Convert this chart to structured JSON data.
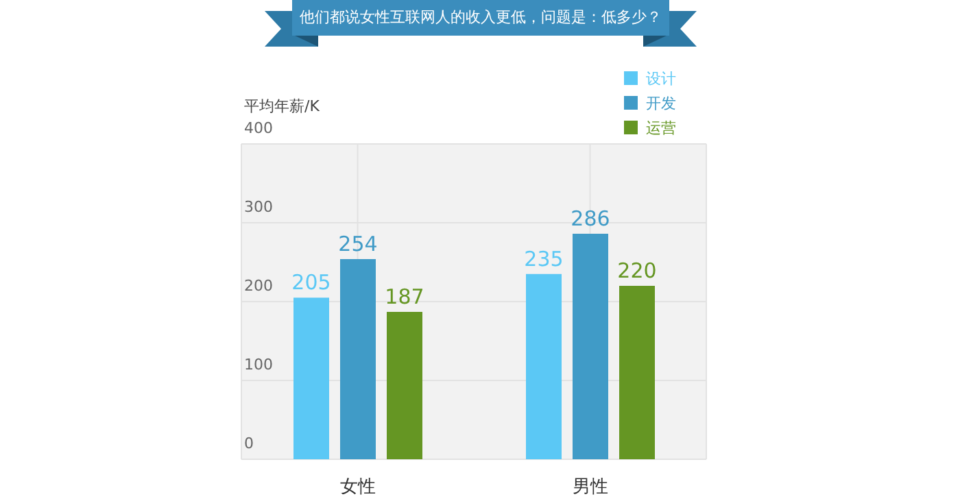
{
  "chart_data": {
    "type": "bar",
    "title": "他们都说女性互联网人的收入更低，问题是：低多少？",
    "ylabel": "平均年薪/K",
    "categories": [
      "女性",
      "男性"
    ],
    "series": [
      {
        "name": "设计",
        "color": "#5bc8f5",
        "values": [
          205,
          235
        ]
      },
      {
        "name": "开发",
        "color": "#409bc7",
        "values": [
          254,
          286
        ]
      },
      {
        "name": "运营",
        "color": "#659623",
        "values": [
          187,
          220
        ]
      }
    ],
    "ylim": [
      0,
      400
    ],
    "yticks": [
      0,
      100,
      200,
      300,
      400
    ],
    "grid": true,
    "legend": "top right",
    "data_labels": true
  }
}
